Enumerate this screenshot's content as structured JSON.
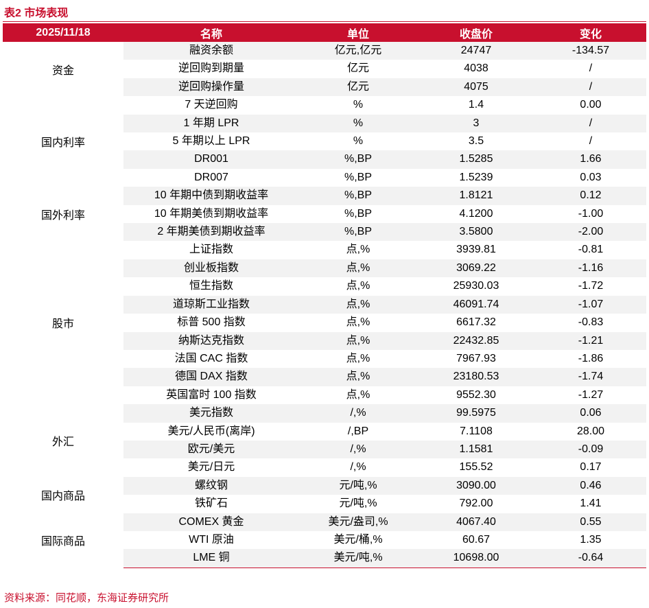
{
  "title": "表2  市场表现",
  "header": {
    "date": "2025/11/18",
    "name": "名称",
    "unit": "单位",
    "close": "收盘价",
    "change": "变化"
  },
  "groups": [
    {
      "category": "资金",
      "rows": [
        {
          "name": "融资余额",
          "unit": "亿元,亿元",
          "close": "24747",
          "change": "-134.57"
        },
        {
          "name": "逆回购到期量",
          "unit": "亿元",
          "close": "4038",
          "change": "/"
        },
        {
          "name": "逆回购操作量",
          "unit": "亿元",
          "close": "4075",
          "change": "/"
        }
      ]
    },
    {
      "category": "国内利率",
      "rows": [
        {
          "name": "7 天逆回购",
          "unit": "%",
          "close": "1.4",
          "change": "0.00"
        },
        {
          "name": "1 年期 LPR",
          "unit": "%",
          "close": "3",
          "change": "/"
        },
        {
          "name": "5 年期以上 LPR",
          "unit": "%",
          "close": "3.5",
          "change": "/"
        },
        {
          "name": "DR001",
          "unit": "%,BP",
          "close": "1.5285",
          "change": "1.66"
        },
        {
          "name": "DR007",
          "unit": "%,BP",
          "close": "1.5239",
          "change": "0.03"
        }
      ]
    },
    {
      "category": "国外利率",
      "rows": [
        {
          "name": "10 年期中债到期收益率",
          "unit": "%,BP",
          "close": "1.8121",
          "change": "0.12"
        },
        {
          "name": "10 年期美债到期收益率",
          "unit": "%,BP",
          "close": "4.1200",
          "change": "-1.00"
        },
        {
          "name": "2 年期美债到期收益率",
          "unit": "%,BP",
          "close": "3.5800",
          "change": "-2.00"
        }
      ]
    },
    {
      "category": "股市",
      "rows": [
        {
          "name": "上证指数",
          "unit": "点,%",
          "close": "3939.81",
          "change": "-0.81"
        },
        {
          "name": "创业板指数",
          "unit": "点,%",
          "close": "3069.22",
          "change": "-1.16"
        },
        {
          "name": "恒生指数",
          "unit": "点,%",
          "close": "25930.03",
          "change": "-1.72"
        },
        {
          "name": "道琼斯工业指数",
          "unit": "点,%",
          "close": "46091.74",
          "change": "-1.07"
        },
        {
          "name": "标普 500 指数",
          "unit": "点,%",
          "close": "6617.32",
          "change": "-0.83"
        },
        {
          "name": "纳斯达克指数",
          "unit": "点,%",
          "close": "22432.85",
          "change": "-1.21"
        },
        {
          "name": "法国 CAC 指数",
          "unit": "点,%",
          "close": "7967.93",
          "change": "-1.86"
        },
        {
          "name": "德国 DAX 指数",
          "unit": "点,%",
          "close": "23180.53",
          "change": "-1.74"
        },
        {
          "name": "英国富时 100 指数",
          "unit": "点,%",
          "close": "9552.30",
          "change": "-1.27"
        }
      ]
    },
    {
      "category": "外汇",
      "rows": [
        {
          "name": "美元指数",
          "unit": "/,%",
          "close": "99.5975",
          "change": "0.06"
        },
        {
          "name": "美元/人民币(离岸)",
          "unit": "/,BP",
          "close": "7.1108",
          "change": "28.00"
        },
        {
          "name": "欧元/美元",
          "unit": "/,%",
          "close": "1.1581",
          "change": "-0.09"
        },
        {
          "name": "美元/日元",
          "unit": "/,%",
          "close": "155.52",
          "change": "0.17"
        }
      ]
    },
    {
      "category": "国内商品",
      "rows": [
        {
          "name": "螺纹钢",
          "unit": "元/吨,%",
          "close": "3090.00",
          "change": "0.46"
        },
        {
          "name": "铁矿石",
          "unit": "元/吨,%",
          "close": "792.00",
          "change": "1.41"
        }
      ]
    },
    {
      "category": "国际商品",
      "rows": [
        {
          "name": "COMEX 黄金",
          "unit": "美元/盎司,%",
          "close": "4067.40",
          "change": "0.55"
        },
        {
          "name": "WTI 原油",
          "unit": "美元/桶,%",
          "close": "60.67",
          "change": "1.35"
        },
        {
          "name": "LME 铜",
          "unit": "美元/吨,%",
          "close": "10698.00",
          "change": "-0.64"
        }
      ]
    }
  ],
  "source": "资料来源：同花顺，东海证券研究所",
  "colors": {
    "accent": "#c8102e",
    "stripe": "#f2f2f2"
  }
}
